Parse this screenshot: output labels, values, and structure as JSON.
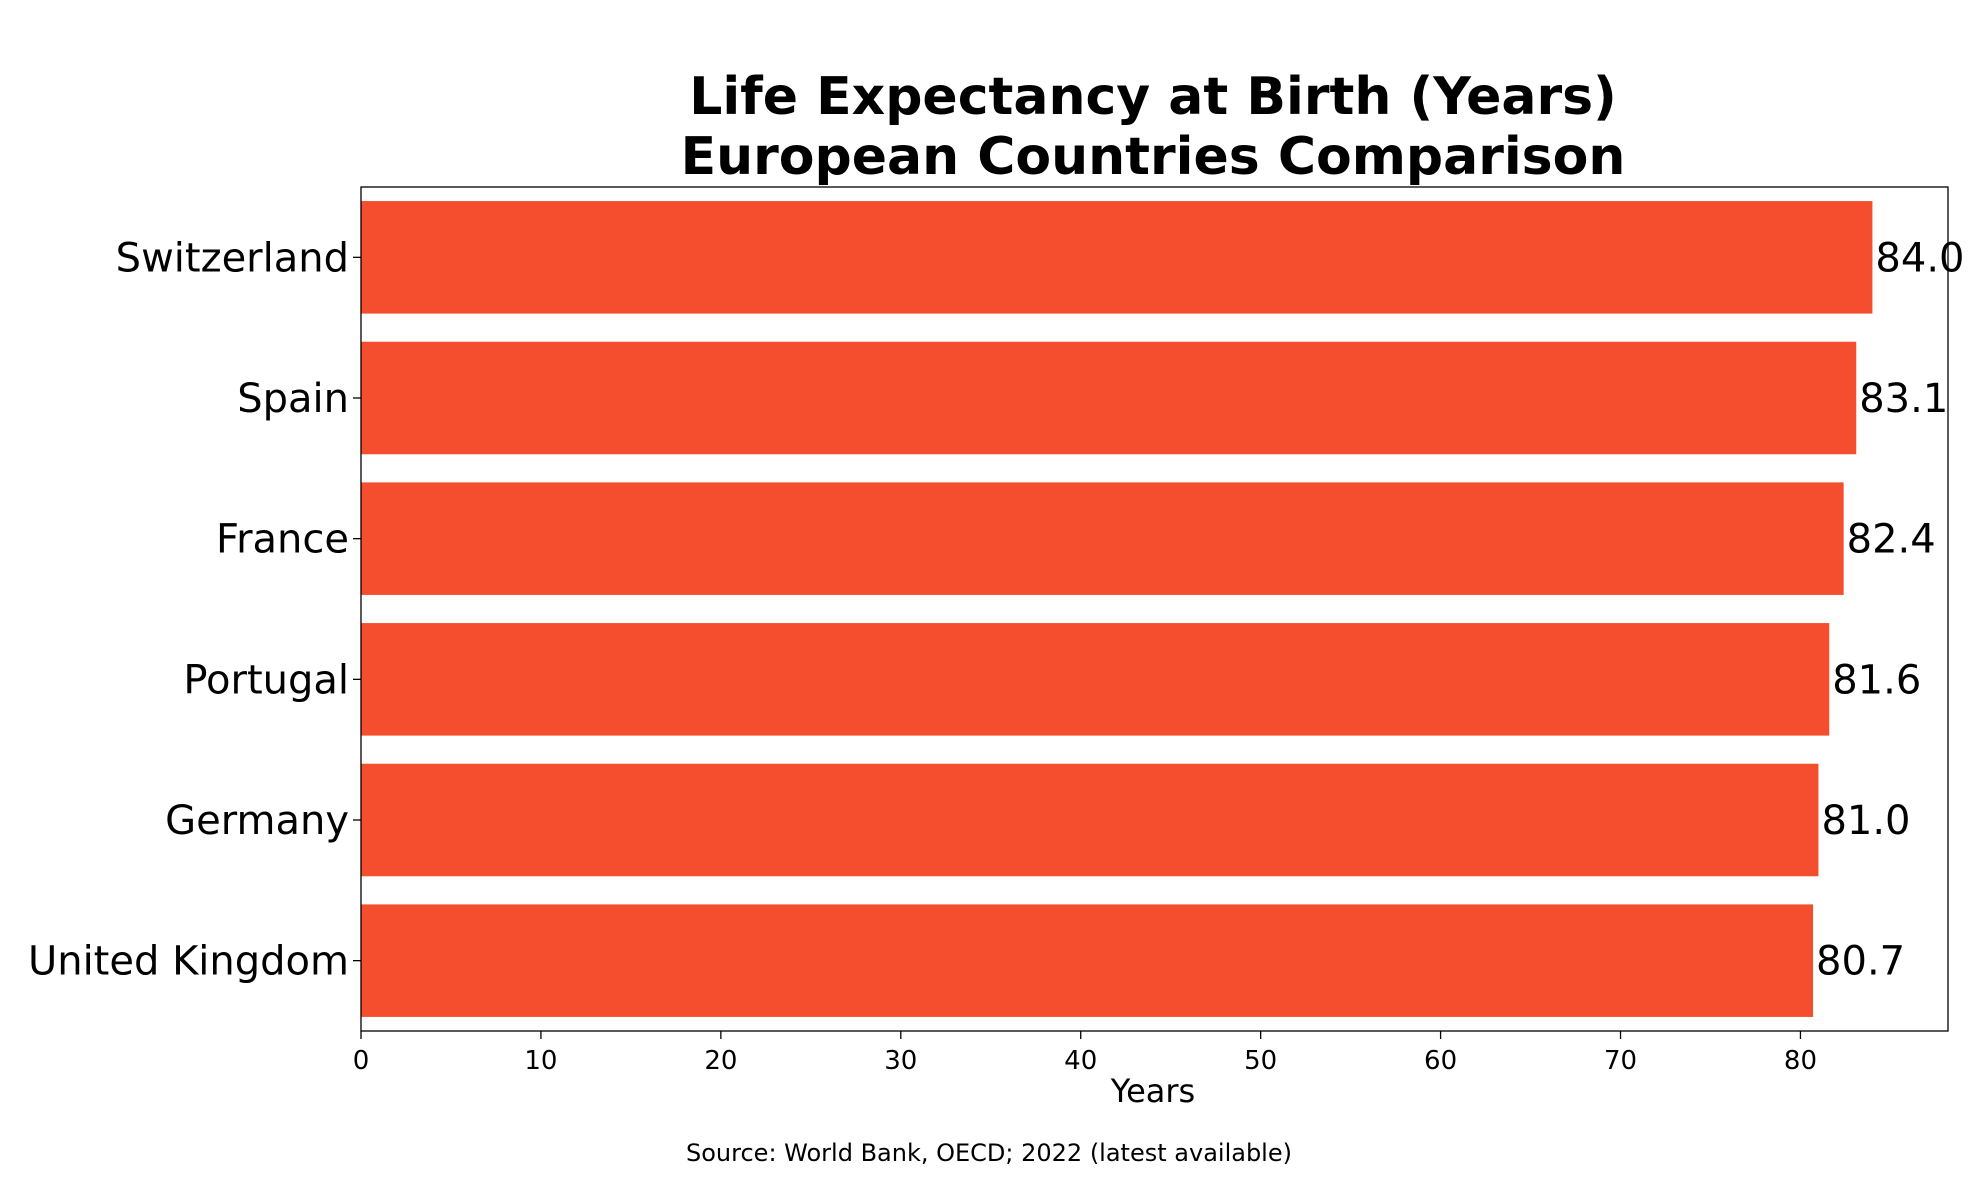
{
  "chart_data": {
    "type": "bar",
    "orientation": "horizontal",
    "title_lines": [
      "Life Expectancy at Birth (Years)",
      "European Countries Comparison"
    ],
    "categories": [
      "Switzerland",
      "Spain",
      "France",
      "Portugal",
      "Germany",
      "United Kingdom"
    ],
    "values": [
      84.0,
      83.1,
      82.4,
      81.6,
      81.0,
      80.7
    ],
    "value_labels": [
      "84.0",
      "83.1",
      "82.4",
      "81.6",
      "81.0",
      "80.7"
    ],
    "xlabel": "Years",
    "ylabel": "",
    "xlim": [
      0,
      88.2
    ],
    "xticks": [
      0,
      10,
      20,
      30,
      40,
      50,
      60,
      70,
      80
    ],
    "xtick_labels": [
      "0",
      "10",
      "20",
      "30",
      "40",
      "50",
      "60",
      "70",
      "80"
    ],
    "grid": false,
    "bar_color": "#f44e2f",
    "source": "Source: World Bank, OECD; 2022 (latest available)"
  }
}
